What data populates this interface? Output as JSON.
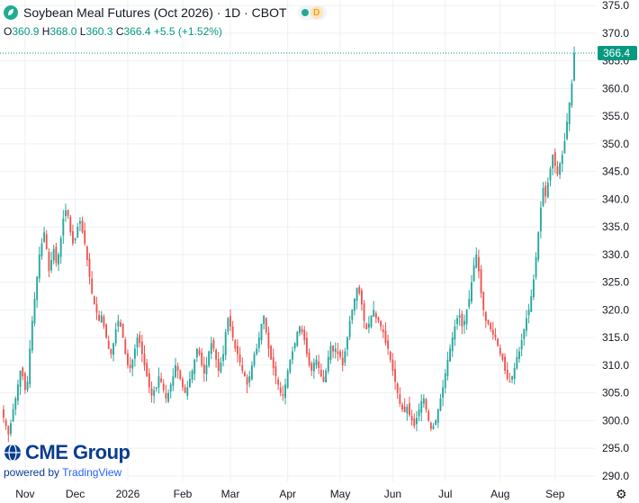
{
  "header": {
    "title": "Soybean Meal Futures (Oct 2026) · 1D · CBOT",
    "badge": "D"
  },
  "ohlc": {
    "o_label": "O",
    "o_value": "360.9",
    "h_label": "H",
    "h_value": "368.0",
    "l_label": "L",
    "l_value": "360.3",
    "c_label": "C",
    "c_value": "366.4",
    "change": "+5.5 (+1.52%)"
  },
  "branding": {
    "logo_text": "CME Group",
    "powered_prefix": "powered by",
    "powered_brand": "TradingView"
  },
  "colors": {
    "up": "#26a69a",
    "down": "#ef5350",
    "grid": "#eef0f3",
    "axis_text": "#131722",
    "last_price_line": "#089981"
  },
  "chart_data": {
    "type": "candlestick",
    "title": "Soybean Meal Futures (Oct 2026) · 1D · CBOT",
    "last_price": 366.4,
    "ylim": [
      289,
      376
    ],
    "y_ticks": [
      375.0,
      370.0,
      365.0,
      360.0,
      355.0,
      350.0,
      345.0,
      340.0,
      335.0,
      330.0,
      325.0,
      320.0,
      315.0,
      310.0,
      305.0,
      300.0,
      295.0,
      290.0
    ],
    "x_ticks": [
      {
        "label": "Nov",
        "index": 9
      },
      {
        "label": "Dec",
        "index": 30
      },
      {
        "label": "2026",
        "index": 52
      },
      {
        "label": "Feb",
        "index": 75
      },
      {
        "label": "Mar",
        "index": 95
      },
      {
        "label": "Apr",
        "index": 119
      },
      {
        "label": "May",
        "index": 141
      },
      {
        "label": "Jun",
        "index": 163
      },
      {
        "label": "Jul",
        "index": 185
      },
      {
        "label": "Aug",
        "index": 208
      },
      {
        "label": "Sep",
        "index": 231
      }
    ],
    "grid": true,
    "closes": [
      300.5,
      299.0,
      297.5,
      299.5,
      302.0,
      304.0,
      306.5,
      309.0,
      308.0,
      305.5,
      307.0,
      313.0,
      318.0,
      322.0,
      326.0,
      330.0,
      332.0,
      334.0,
      331.0,
      327.0,
      329.0,
      331.0,
      328.5,
      330.0,
      333.0,
      336.5,
      338.0,
      337.0,
      334.0,
      332.0,
      333.0,
      335.0,
      336.0,
      334.0,
      332.0,
      329.0,
      326.0,
      323.0,
      321.0,
      319.5,
      318.0,
      319.0,
      317.0,
      315.0,
      313.0,
      312.0,
      314.0,
      316.5,
      318.0,
      317.0,
      315.0,
      312.0,
      310.0,
      309.5,
      311.0,
      313.0,
      315.0,
      314.0,
      312.0,
      310.0,
      308.0,
      306.0,
      304.5,
      305.5,
      306.0,
      308.0,
      307.0,
      305.5,
      304.0,
      305.0,
      306.5,
      308.0,
      310.0,
      309.0,
      307.5,
      306.0,
      305.0,
      306.0,
      307.5,
      309.0,
      311.0,
      313.0,
      312.0,
      310.0,
      308.5,
      310.0,
      312.5,
      314.0,
      313.0,
      311.0,
      309.0,
      310.5,
      312.0,
      316.0,
      318.5,
      317.0,
      315.0,
      313.0,
      312.0,
      310.5,
      309.0,
      308.0,
      306.5,
      308.0,
      310.0,
      312.0,
      313.0,
      315.0,
      317.5,
      319.0,
      316.0,
      313.0,
      311.0,
      309.5,
      308.0,
      306.5,
      305.0,
      304.5,
      306.5,
      309.0,
      311.0,
      312.5,
      314.0,
      316.0,
      317.0,
      316.0,
      314.5,
      312.0,
      310.0,
      309.0,
      310.5,
      311.0,
      309.5,
      308.0,
      307.0,
      309.0,
      311.5,
      313.5,
      312.5,
      313.0,
      312.0,
      311.5,
      310.0,
      312.5,
      315.0,
      318.0,
      320.0,
      322.0,
      324.0,
      323.0,
      321.0,
      318.0,
      316.5,
      317.5,
      319.0,
      320.0,
      318.5,
      318.0,
      317.0,
      316.0,
      314.0,
      313.0,
      311.0,
      309.0,
      307.0,
      305.0,
      303.0,
      302.0,
      301.5,
      302.5,
      301.0,
      300.0,
      299.0,
      300.5,
      302.0,
      303.5,
      304.0,
      302.0,
      300.0,
      298.5,
      299.0,
      300.0,
      302.0,
      304.0,
      306.0,
      308.5,
      311.0,
      313.0,
      315.0,
      317.0,
      318.5,
      319.0,
      317.0,
      318.0,
      320.0,
      322.0,
      325.0,
      328.0,
      330.0,
      327.0,
      323.0,
      320.0,
      318.0,
      317.5,
      316.5,
      315.5,
      315.0,
      313.5,
      312.0,
      311.0,
      309.0,
      307.5,
      307.0,
      308.0,
      309.5,
      311.5,
      312.5,
      314.5,
      316.5,
      318.5,
      320.0,
      322.5,
      325.5,
      329.5,
      334.0,
      338.5,
      342.0,
      340.5,
      343.0,
      345.5,
      348.0,
      346.0,
      344.5,
      346.5,
      348.0,
      350.5,
      354.0,
      357.5,
      360.9,
      366.4
    ]
  }
}
